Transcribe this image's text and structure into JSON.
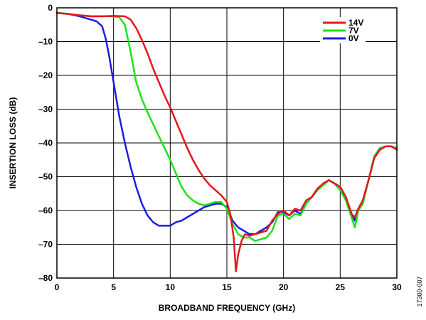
{
  "chart_data": {
    "type": "line",
    "xlabel": "BROADBAND FREQUENCY (GHz)",
    "ylabel": "INSERTION LOSS (dB)",
    "xlim": [
      0,
      30
    ],
    "ylim": [
      -80,
      0
    ],
    "xticks": [
      0,
      5,
      10,
      15,
      20,
      25,
      30
    ],
    "yticks": [
      0,
      -10,
      -20,
      -30,
      -40,
      -50,
      -60,
      -70,
      -80
    ],
    "grid": true,
    "legend_position": "top-right",
    "figure_id": "17300-007",
    "series": [
      {
        "name": "14V",
        "color": "#e8161c",
        "x": [
          0,
          1,
          2,
          3,
          4,
          5,
          6,
          6.5,
          7,
          7.5,
          8,
          8.5,
          9,
          9.5,
          10,
          10.5,
          11,
          11.5,
          12,
          12.5,
          13,
          13.5,
          14,
          14.5,
          15,
          15.3,
          15.6,
          15.8,
          16,
          16.3,
          16.6,
          17,
          17.5,
          18,
          18.5,
          19,
          19.5,
          20,
          20.5,
          21,
          21.5,
          22,
          22.5,
          23,
          23.5,
          24,
          24.5,
          25,
          25.5,
          26,
          26.3,
          26.6,
          27,
          27.5,
          28,
          28.5,
          29,
          29.5,
          30
        ],
        "y": [
          -1.5,
          -1.8,
          -2.2,
          -2.5,
          -2.5,
          -2.4,
          -2.5,
          -3.5,
          -6,
          -9.5,
          -13.5,
          -18,
          -22,
          -26,
          -29.5,
          -33.5,
          -37.5,
          -41.5,
          -45,
          -48,
          -50.5,
          -52.5,
          -54,
          -55.5,
          -57.5,
          -61,
          -68,
          -78,
          -73,
          -69,
          -67,
          -67.5,
          -67,
          -66.5,
          -66,
          -63,
          -61,
          -60,
          -61.5,
          -59.5,
          -60,
          -57,
          -56,
          -53.5,
          -52,
          -51,
          -52,
          -53,
          -56,
          -61,
          -62,
          -59.5,
          -57,
          -51,
          -44.5,
          -42,
          -41,
          -41,
          -42
        ]
      },
      {
        "name": "7V",
        "color": "#18e418",
        "x": [
          0,
          1,
          2,
          3,
          4,
          5,
          5.5,
          6,
          6.5,
          7,
          7.5,
          8,
          8.5,
          9,
          9.5,
          10,
          10.5,
          11,
          11.5,
          12,
          12.5,
          13,
          13.5,
          14,
          14.5,
          15,
          15.5,
          16,
          16.5,
          17,
          17.5,
          18,
          18.5,
          19,
          19.5,
          20,
          20.5,
          21,
          21.5,
          22,
          22.5,
          23,
          23.5,
          24,
          24.5,
          25,
          25.5,
          26,
          26.3,
          26.6,
          27,
          27.5,
          28,
          28.5,
          29,
          29.5,
          30
        ],
        "y": [
          -1.5,
          -1.8,
          -2.2,
          -2.5,
          -2.5,
          -2.5,
          -2.8,
          -5,
          -13,
          -22,
          -27,
          -31,
          -34.5,
          -38,
          -41.5,
          -45,
          -49,
          -53,
          -55.5,
          -57,
          -58,
          -58.5,
          -58,
          -57.5,
          -57.5,
          -59.5,
          -64,
          -67,
          -68,
          -68,
          -69,
          -68.5,
          -68,
          -66,
          -61.5,
          -61,
          -62.5,
          -61,
          -61.5,
          -58,
          -56,
          -54,
          -52.5,
          -51,
          -52,
          -54,
          -57,
          -62,
          -65,
          -60,
          -58,
          -51,
          -44,
          -41.5,
          -41,
          -41,
          -41.5
        ]
      },
      {
        "name": "0V",
        "color": "#1c1ce6",
        "x": [
          0,
          1,
          2,
          3,
          3.5,
          4,
          4.3,
          4.6,
          5,
          5.5,
          6,
          6.5,
          7,
          7.5,
          8,
          8.5,
          9,
          9.5,
          10,
          10.5,
          11,
          11.5,
          12,
          12.5,
          13,
          13.5,
          14,
          14.5,
          15,
          15.5,
          16,
          16.5,
          17,
          17.5,
          18,
          18.5,
          19,
          19.5,
          20,
          20.5,
          21,
          21.5,
          22,
          22.5,
          23,
          23.5,
          24,
          24.5,
          25,
          25.5,
          26,
          26.3,
          26.6,
          27,
          27.5,
          28,
          28.5,
          29,
          29.5,
          30
        ],
        "y": [
          -1.5,
          -1.8,
          -2.5,
          -3.5,
          -4,
          -5.5,
          -9,
          -14,
          -22,
          -32,
          -40,
          -47,
          -53,
          -58,
          -61.5,
          -63.5,
          -64.5,
          -64.5,
          -64.5,
          -63.5,
          -63,
          -62,
          -61,
          -60,
          -59,
          -58.5,
          -58,
          -58,
          -59,
          -63,
          -65,
          -66,
          -67,
          -67,
          -66,
          -65,
          -63.5,
          -60.5,
          -60.5,
          -61.5,
          -60,
          -61,
          -58,
          -56,
          -53.5,
          -52.5,
          -51,
          -52,
          -53,
          -56,
          -61,
          -63,
          -59.5,
          -57,
          -51,
          -44.5,
          -42,
          -41,
          -41,
          -41.5
        ]
      }
    ]
  }
}
